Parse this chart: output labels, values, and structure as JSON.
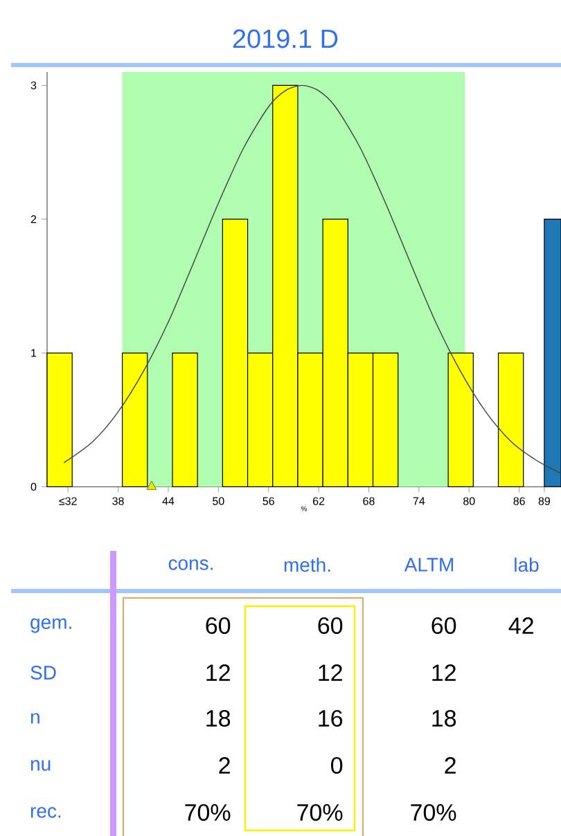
{
  "chart_data": [
    {
      "type": "histogram",
      "title": "2019.1 D",
      "xlabel": "%",
      "xlim": [
        29.5,
        91
      ],
      "ylim": [
        0,
        3.1
      ],
      "xticks": [
        {
          "value": 32,
          "label": "≤32"
        },
        38,
        44,
        50,
        56,
        62,
        68,
        74,
        80,
        86,
        89
      ],
      "yticks": [
        0,
        1,
        2,
        3
      ],
      "bands": [
        {
          "axis": "x",
          "from": 38.5,
          "to": 79.5,
          "color": "#b0fcb0"
        }
      ],
      "series": [
        {
          "type": "histogram",
          "color": "#ffff00",
          "bins": [
            29.5,
            32.5,
            35.5,
            38.5,
            41.5,
            44.5,
            47.5,
            50.5,
            53.5,
            56.5,
            59.5,
            62.5,
            65.5,
            68.5,
            71.5,
            74.5,
            77.5,
            80.5,
            83.5,
            86.5
          ],
          "values": [
            1,
            0,
            0,
            1,
            0,
            1,
            0,
            2,
            1,
            3,
            1,
            2,
            1,
            1,
            0,
            0,
            1,
            0,
            1
          ]
        },
        {
          "type": "histogram",
          "color": "#1f77b4",
          "bins": [
            89,
            91
          ],
          "values": [
            2
          ]
        },
        {
          "type": "line",
          "color": "#404040",
          "x": [
            31.5,
            35,
            38,
            41,
            44,
            47,
            50,
            53,
            56,
            58,
            60,
            62,
            64,
            67,
            70,
            73,
            76,
            79,
            82,
            85,
            88,
            91
          ],
          "values": [
            0.18,
            0.34,
            0.56,
            0.86,
            1.23,
            1.67,
            2.12,
            2.53,
            2.84,
            2.96,
            3.0,
            2.96,
            2.84,
            2.53,
            2.12,
            1.67,
            1.23,
            0.86,
            0.56,
            0.34,
            0.2,
            0.1
          ]
        },
        {
          "type": "scatter",
          "marker": "triangle",
          "color": "#e8e800",
          "x": [
            42
          ],
          "values": [
            0
          ]
        }
      ]
    },
    {
      "type": "other",
      "categories": [
        "cons.",
        "meth.",
        "ALTM",
        "lab"
      ],
      "y_categories": [
        "gem.",
        "SD",
        "n",
        "nu",
        "rec."
      ],
      "cell_labels": [
        [
          "60",
          "60",
          "60",
          "42"
        ],
        [
          "12",
          "12",
          "12",
          null
        ],
        [
          "18",
          "16",
          "18",
          null
        ],
        [
          "2",
          "0",
          "2",
          null
        ],
        [
          "70%",
          "70%",
          "70%",
          null
        ]
      ]
    }
  ]
}
